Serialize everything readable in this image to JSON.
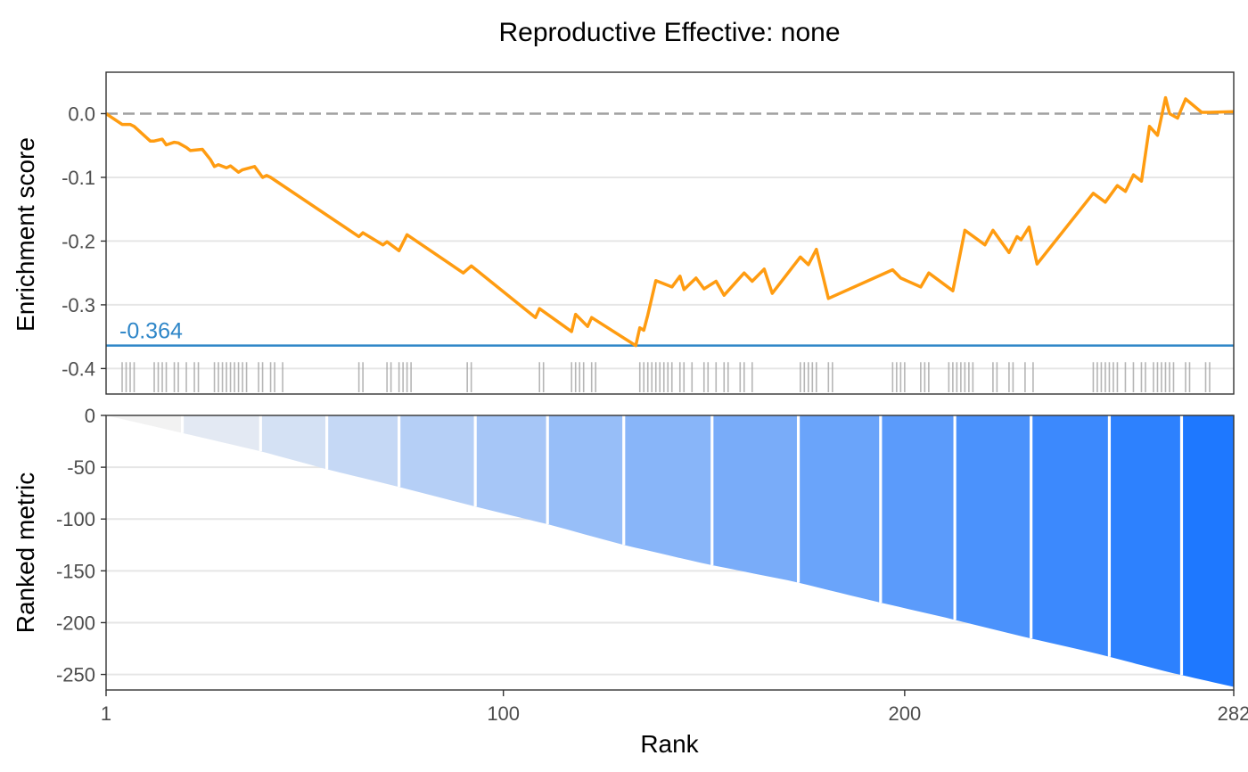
{
  "title": "Reproductive Effective: none",
  "colors": {
    "es_line": "#FF9C11",
    "min_line": "#2E86C8",
    "zero_line": "#A0A0A0",
    "hits": "#9E9E9E",
    "grid": "#E6E6E6",
    "frame": "#333333",
    "bar_gradient_start": "#F2F2F2",
    "bar_gradient_end": "#1E78FF"
  },
  "chart_data": [
    {
      "type": "line",
      "panel": "enrichment",
      "ylabel": "Enrichment score",
      "xlim": [
        1,
        282
      ],
      "ylim": [
        -0.44,
        0.065
      ],
      "yticks": [
        0.0,
        -0.1,
        -0.2,
        -0.3,
        -0.4
      ],
      "ytick_labels": [
        "0.0",
        "-0.1",
        "-0.2",
        "-0.3",
        "-0.4"
      ],
      "zero_line": 0,
      "min_es": -0.364,
      "min_label": "-0.364",
      "series": [
        {
          "x": [
            1,
            5,
            7,
            8,
            12,
            13,
            15,
            16,
            18,
            19,
            21,
            22,
            25,
            27,
            28,
            29,
            31,
            32,
            34,
            35,
            38,
            40,
            41,
            42,
            64,
            65,
            70,
            71,
            74,
            76,
            90,
            92,
            108,
            109,
            117,
            118,
            121,
            122,
            133,
            134,
            135,
            136,
            138,
            142,
            144,
            145,
            148,
            150,
            153,
            155,
            160,
            162,
            165,
            167,
            174,
            176,
            178,
            181,
            197,
            199,
            204,
            206,
            212,
            215,
            220,
            222,
            226,
            228,
            229,
            231,
            233,
            247,
            250,
            253,
            255,
            257,
            259,
            261,
            263,
            265,
            266,
            268,
            270,
            274,
            276,
            282
          ],
          "y": [
            0.0,
            -0.017,
            -0.017,
            -0.02,
            -0.043,
            -0.043,
            -0.04,
            -0.049,
            -0.045,
            -0.046,
            -0.053,
            -0.058,
            -0.056,
            -0.072,
            -0.083,
            -0.08,
            -0.085,
            -0.082,
            -0.092,
            -0.088,
            -0.083,
            -0.1,
            -0.097,
            -0.1,
            -0.193,
            -0.187,
            -0.206,
            -0.201,
            -0.215,
            -0.19,
            -0.25,
            -0.239,
            -0.32,
            -0.306,
            -0.342,
            -0.315,
            -0.334,
            -0.32,
            -0.364,
            -0.336,
            -0.34,
            -0.316,
            -0.262,
            -0.272,
            -0.255,
            -0.276,
            -0.258,
            -0.275,
            -0.263,
            -0.285,
            -0.25,
            -0.263,
            -0.244,
            -0.282,
            -0.225,
            -0.237,
            -0.213,
            -0.29,
            -0.245,
            -0.258,
            -0.272,
            -0.25,
            -0.278,
            -0.183,
            -0.206,
            -0.183,
            -0.218,
            -0.193,
            -0.198,
            -0.178,
            -0.236,
            -0.125,
            -0.139,
            -0.113,
            -0.122,
            -0.096,
            -0.106,
            -0.02,
            -0.034,
            0.025,
            0.0,
            -0.007,
            0.023,
            0.002,
            0.002,
            0.003
          ]
        }
      ],
      "hits": [
        5,
        6,
        7,
        8,
        13,
        14,
        15,
        16,
        18,
        19,
        21,
        23,
        24,
        28,
        29,
        30,
        31,
        32,
        33,
        34,
        35,
        36,
        39,
        40,
        42,
        43,
        45,
        64,
        65,
        71,
        72,
        74,
        75,
        76,
        77,
        91,
        92,
        109,
        110,
        117,
        118,
        119,
        120,
        122,
        123,
        134,
        135,
        136,
        137,
        138,
        139,
        140,
        141,
        142,
        144,
        145,
        147,
        150,
        151,
        153,
        155,
        156,
        159,
        160,
        162,
        174,
        175,
        176,
        177,
        178,
        181,
        182,
        197,
        198,
        199,
        200,
        204,
        205,
        206,
        211,
        212,
        213,
        214,
        215,
        216,
        217,
        222,
        223,
        226,
        227,
        230,
        232,
        247,
        248,
        249,
        250,
        251,
        252,
        253,
        255,
        257,
        259,
        260,
        262,
        263,
        264,
        265,
        266,
        267,
        270,
        271,
        275,
        276
      ]
    },
    {
      "type": "area",
      "panel": "ranked",
      "xlabel": "Rank",
      "ylabel": "Ranked metric",
      "xlim": [
        1,
        282
      ],
      "ylim": [
        -265,
        0
      ],
      "xticks": [
        1,
        100,
        200,
        282
      ],
      "xtick_labels": [
        "1",
        "100",
        "200",
        "282"
      ],
      "yticks": [
        0,
        -50,
        -100,
        -150,
        -200,
        -250
      ],
      "ytick_labels": [
        "0",
        "-50",
        "-100",
        "-150",
        "-200",
        "-250"
      ],
      "x": [
        1,
        20,
        40,
        56,
        75,
        93,
        111,
        130,
        150,
        172,
        191,
        210,
        229,
        248,
        266,
        282
      ],
      "values": [
        0,
        -17,
        -35,
        -52,
        -70,
        -88,
        -105,
        -125,
        -143,
        -160,
        -178,
        -195,
        -213,
        -230,
        -248,
        -262
      ],
      "band_edges": [
        1,
        20,
        39.5,
        56,
        74,
        93,
        111,
        130,
        152,
        173.5,
        194,
        212.5,
        231.5,
        251,
        269,
        282
      ]
    }
  ]
}
